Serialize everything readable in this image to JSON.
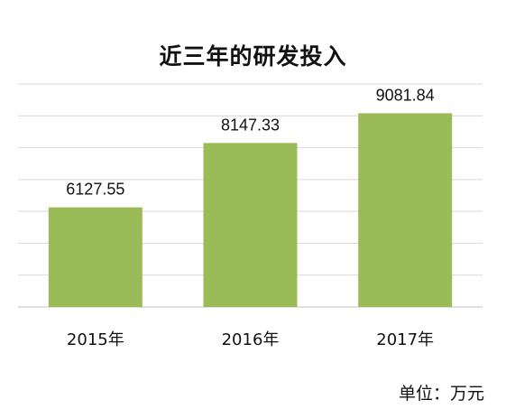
{
  "chart_data": {
    "type": "bar",
    "title": "近三年的研发投入",
    "categories": [
      "2015年",
      "2016年",
      "2017年"
    ],
    "values": [
      6127.55,
      8147.33,
      9081.84
    ],
    "value_labels": [
      "6127.55",
      "8147.33",
      "9081.84"
    ],
    "ylim": [
      3000,
      10000
    ],
    "grid": true,
    "axis_visible": false,
    "bar_color": "#9BBB59",
    "grid_color": "#D9D9D9",
    "unit_text": "单位：万元"
  }
}
